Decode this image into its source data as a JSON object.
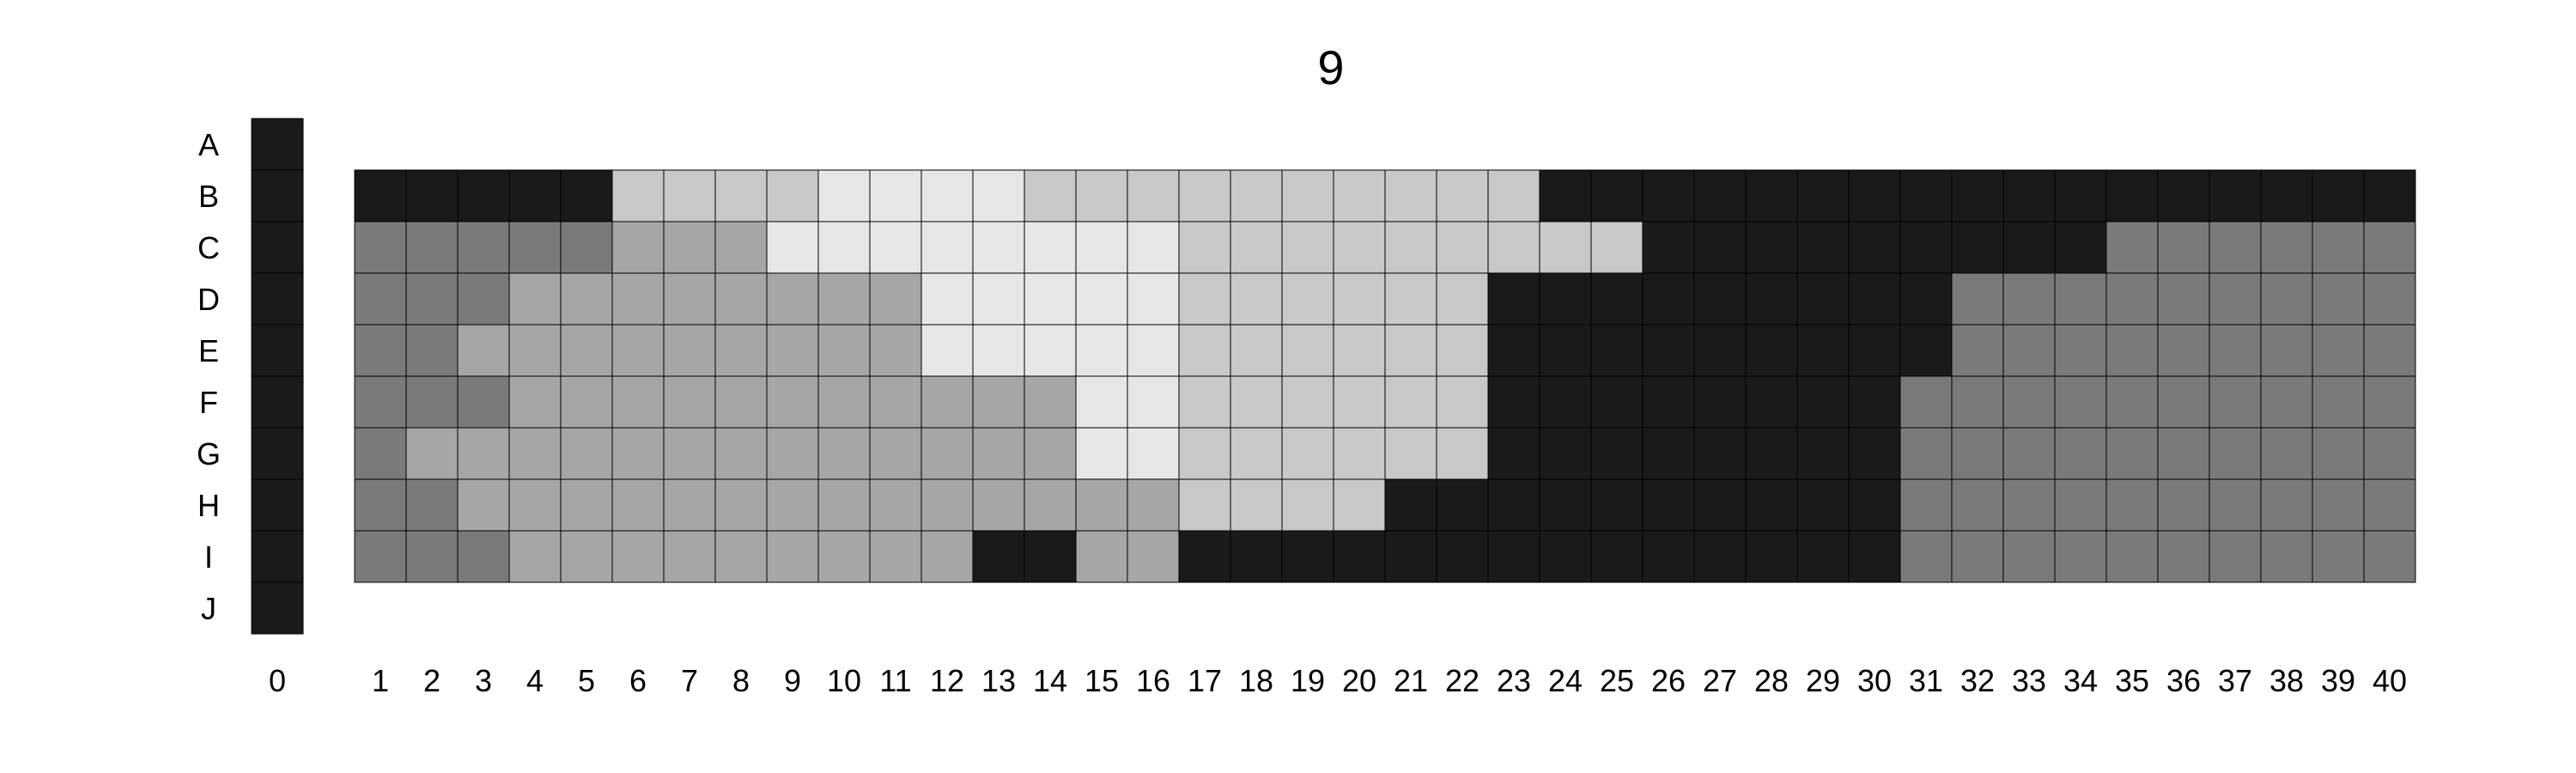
{
  "chart_data": {
    "type": "heatmap",
    "title": "9",
    "xlabel": "",
    "ylabel": "",
    "grid": true,
    "legend": "none",
    "color_scale": {
      "0": "#1a1a1a",
      "1": "#7a7a7a",
      "2": "#a6a6a6",
      "3": "#c8c8c8",
      "4": "#e6e6e6"
    },
    "rows": [
      "A",
      "B",
      "C",
      "D",
      "E",
      "F",
      "G",
      "H",
      "I",
      "J"
    ],
    "columns": [
      "0",
      "1",
      "2",
      "3",
      "4",
      "5",
      "6",
      "7",
      "8",
      "9",
      "10",
      "11",
      "12",
      "13",
      "14",
      "15",
      "16",
      "17",
      "18",
      "19",
      "20",
      "21",
      "22",
      "23",
      "24",
      "25",
      "26",
      "27",
      "28",
      "29",
      "30",
      "31",
      "32",
      "33",
      "34",
      "35",
      "36",
      "37",
      "38",
      "39",
      "40"
    ],
    "column0_values": [
      0,
      0,
      0,
      0,
      0,
      0,
      0,
      0,
      0,
      0
    ],
    "grid_rows": [
      "B",
      "C",
      "D",
      "E",
      "F",
      "G",
      "H",
      "I"
    ],
    "grid_values": [
      [
        0,
        0,
        0,
        0,
        0,
        3,
        3,
        3,
        3,
        4,
        4,
        4,
        4,
        3,
        3,
        3,
        3,
        3,
        3,
        3,
        3,
        3,
        3,
        0,
        0,
        0,
        0,
        0,
        0,
        0,
        0,
        0,
        0,
        0,
        0,
        0,
        0,
        0,
        0,
        0
      ],
      [
        1,
        1,
        1,
        1,
        1,
        2,
        2,
        2,
        4,
        4,
        4,
        4,
        4,
        4,
        4,
        4,
        3,
        3,
        3,
        3,
        3,
        3,
        3,
        3,
        3,
        0,
        0,
        0,
        0,
        0,
        0,
        0,
        0,
        0,
        1,
        1,
        1,
        1,
        1,
        1
      ],
      [
        1,
        1,
        1,
        2,
        2,
        2,
        2,
        2,
        2,
        2,
        2,
        4,
        4,
        4,
        4,
        4,
        3,
        3,
        3,
        3,
        3,
        3,
        0,
        0,
        0,
        0,
        0,
        0,
        0,
        0,
        0,
        1,
        1,
        1,
        1,
        1,
        1,
        1,
        1,
        1
      ],
      [
        1,
        1,
        2,
        2,
        2,
        2,
        2,
        2,
        2,
        2,
        2,
        4,
        4,
        4,
        4,
        4,
        3,
        3,
        3,
        3,
        3,
        3,
        0,
        0,
        0,
        0,
        0,
        0,
        0,
        0,
        0,
        1,
        1,
        1,
        1,
        1,
        1,
        1,
        1,
        1
      ],
      [
        1,
        1,
        1,
        2,
        2,
        2,
        2,
        2,
        2,
        2,
        2,
        2,
        2,
        2,
        4,
        4,
        3,
        3,
        3,
        3,
        3,
        3,
        0,
        0,
        0,
        0,
        0,
        0,
        0,
        0,
        1,
        1,
        1,
        1,
        1,
        1,
        1,
        1,
        1,
        1
      ],
      [
        1,
        2,
        2,
        2,
        2,
        2,
        2,
        2,
        2,
        2,
        2,
        2,
        2,
        2,
        4,
        4,
        3,
        3,
        3,
        3,
        3,
        3,
        0,
        0,
        0,
        0,
        0,
        0,
        0,
        0,
        1,
        1,
        1,
        1,
        1,
        1,
        1,
        1,
        1,
        1
      ],
      [
        1,
        1,
        2,
        2,
        2,
        2,
        2,
        2,
        2,
        2,
        2,
        2,
        2,
        2,
        2,
        2,
        3,
        3,
        3,
        3,
        0,
        0,
        0,
        0,
        0,
        0,
        0,
        0,
        0,
        0,
        1,
        1,
        1,
        1,
        1,
        1,
        1,
        1,
        1,
        1
      ],
      [
        1,
        1,
        1,
        2,
        2,
        2,
        2,
        2,
        2,
        2,
        2,
        2,
        0,
        0,
        2,
        2,
        0,
        0,
        0,
        0,
        0,
        0,
        0,
        0,
        0,
        0,
        0,
        0,
        0,
        0,
        1,
        1,
        1,
        1,
        1,
        1,
        1,
        1,
        1,
        1
      ]
    ]
  }
}
